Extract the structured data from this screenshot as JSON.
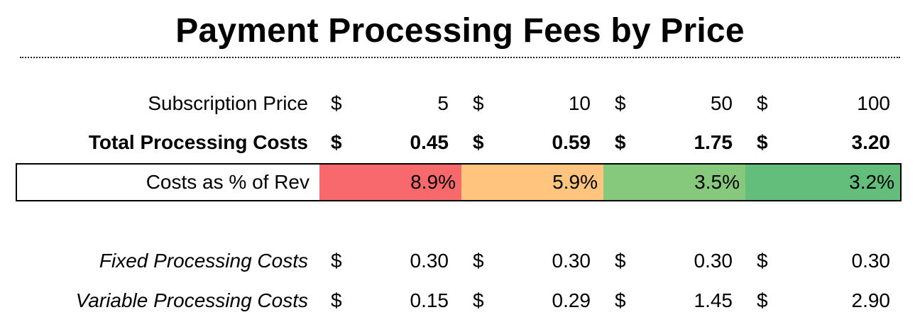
{
  "title": "Payment Processing Fees by Price",
  "currency_symbol": "$",
  "rows": {
    "price": {
      "label": "Subscription Price",
      "values": [
        "5",
        "10",
        "50",
        "100"
      ]
    },
    "total": {
      "label": "Total Processing Costs",
      "values": [
        "0.45",
        "0.59",
        "1.75",
        "3.20"
      ]
    },
    "pct": {
      "label": "Costs as % of Rev",
      "values": [
        "8.9%",
        "5.9%",
        "3.5%",
        "3.2%"
      ],
      "colors": [
        "#f8696b",
        "#ffc47d",
        "#86c97c",
        "#63be7b"
      ]
    },
    "fixed": {
      "label": "Fixed Processing Costs",
      "values": [
        "0.30",
        "0.30",
        "0.30",
        "0.30"
      ]
    },
    "variable": {
      "label": "Variable Processing Costs",
      "values": [
        "0.15",
        "0.29",
        "1.45",
        "2.90"
      ]
    }
  }
}
